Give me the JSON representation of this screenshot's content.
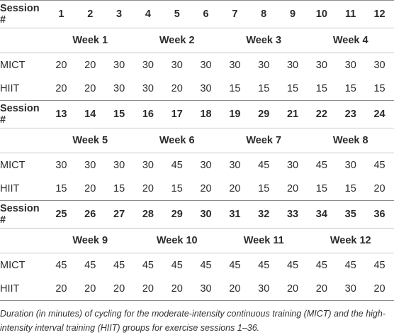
{
  "table": {
    "blocks": [
      {
        "header_label": "Session #",
        "sessions": [
          1,
          2,
          3,
          4,
          5,
          6,
          7,
          8,
          9,
          10,
          11,
          12
        ],
        "weeks": [
          "Week 1",
          "Week 2",
          "Week 3",
          "Week 4"
        ],
        "rows": [
          {
            "label": "MICT",
            "values": [
              20,
              20,
              30,
              30,
              30,
              30,
              30,
              30,
              30,
              30,
              30,
              30
            ]
          },
          {
            "label": "HIIT",
            "values": [
              20,
              20,
              30,
              30,
              20,
              30,
              15,
              15,
              15,
              15,
              15,
              15
            ]
          }
        ]
      },
      {
        "header_label": "Session #",
        "sessions": [
          13,
          14,
          15,
          16,
          17,
          18,
          19,
          29,
          21,
          22,
          23,
          24
        ],
        "weeks": [
          "Week 5",
          "Week 6",
          "Week 7",
          "Week 8"
        ],
        "rows": [
          {
            "label": "MICT",
            "values": [
              30,
              30,
              30,
              30,
              45,
              30,
              30,
              45,
              30,
              45,
              30,
              45
            ]
          },
          {
            "label": "HIIT",
            "values": [
              15,
              20,
              15,
              20,
              15,
              20,
              20,
              15,
              20,
              15,
              15,
              20
            ]
          }
        ]
      },
      {
        "header_label": "Session #",
        "sessions": [
          25,
          26,
          27,
          28,
          29,
          30,
          31,
          32,
          33,
          34,
          35,
          36
        ],
        "weeks": [
          "Week 9",
          "Week 10",
          "Week 11",
          "Week 12"
        ],
        "rows": [
          {
            "label": "MICT",
            "values": [
              45,
              45,
              45,
              45,
              45,
              45,
              45,
              45,
              45,
              45,
              45,
              45
            ]
          },
          {
            "label": "HIIT",
            "values": [
              20,
              20,
              20,
              20,
              20,
              30,
              20,
              30,
              20,
              20,
              30,
              20
            ]
          }
        ]
      }
    ]
  },
  "caption": "Duration (in minutes) of cycling for the moderate-intensity continuous training (MICT) and the high-intensity interval training (HIIT) groups for exercise sessions 1–36."
}
